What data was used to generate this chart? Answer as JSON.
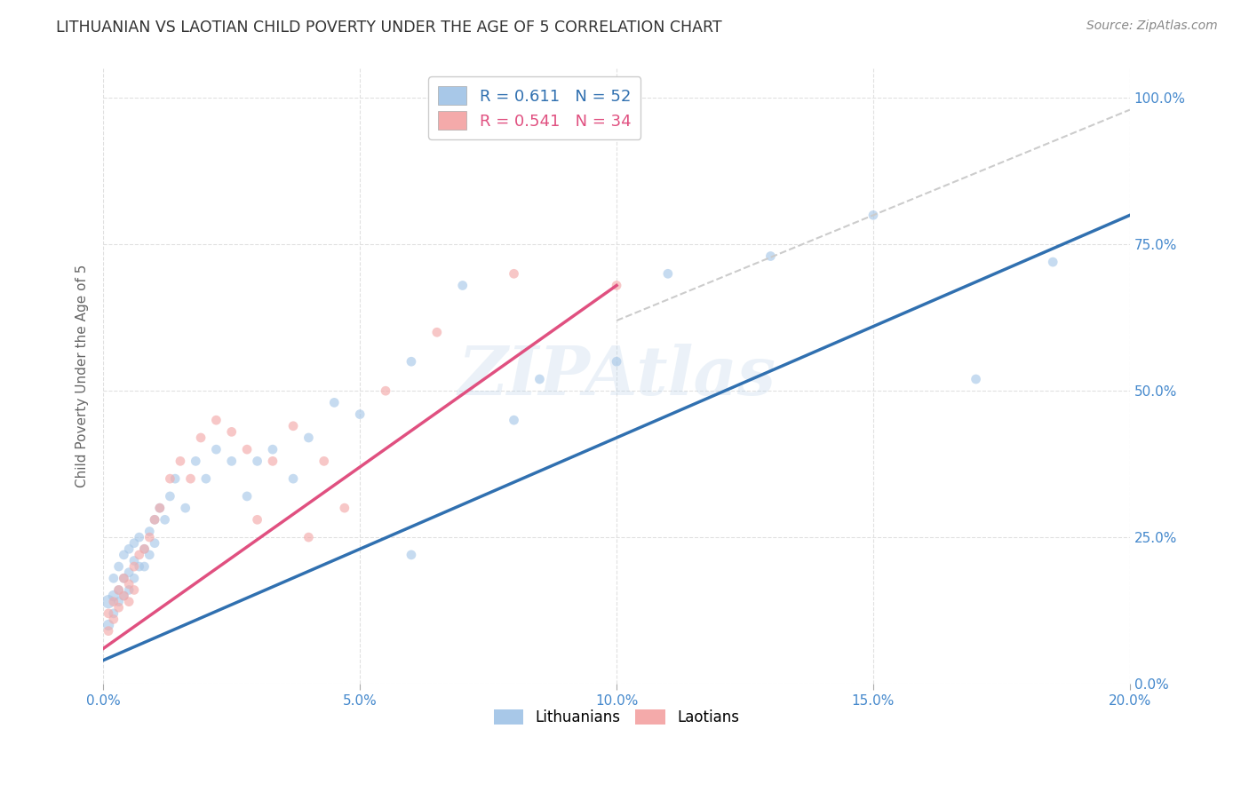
{
  "title": "LITHUANIAN VS LAOTIAN CHILD POVERTY UNDER THE AGE OF 5 CORRELATION CHART",
  "source": "Source: ZipAtlas.com",
  "ylabel": "Child Poverty Under the Age of 5",
  "watermark": "ZIPAtlas",
  "legend_blue_R": "R = 0.611",
  "legend_blue_N": "N = 52",
  "legend_pink_R": "R = 0.541",
  "legend_pink_N": "N = 34",
  "blue_color": "#a8c8e8",
  "pink_color": "#f4aaaa",
  "blue_line_color": "#3070b0",
  "pink_line_color": "#e05080",
  "dashed_line_color": "#cccccc",
  "background_color": "#ffffff",
  "grid_color": "#e0e0e0",
  "tick_label_color": "#4488cc",
  "ylabel_color": "#666666",
  "title_color": "#333333",
  "source_color": "#888888",
  "blue_scatter_x": [
    0.001,
    0.001,
    0.002,
    0.002,
    0.002,
    0.003,
    0.003,
    0.003,
    0.004,
    0.004,
    0.004,
    0.005,
    0.005,
    0.005,
    0.006,
    0.006,
    0.006,
    0.007,
    0.007,
    0.008,
    0.008,
    0.009,
    0.009,
    0.01,
    0.01,
    0.011,
    0.012,
    0.013,
    0.014,
    0.016,
    0.018,
    0.02,
    0.022,
    0.025,
    0.028,
    0.03,
    0.033,
    0.037,
    0.04,
    0.045,
    0.05,
    0.06,
    0.07,
    0.085,
    0.1,
    0.11,
    0.13,
    0.15,
    0.17,
    0.185,
    0.06,
    0.08
  ],
  "blue_scatter_y": [
    0.14,
    0.1,
    0.15,
    0.12,
    0.18,
    0.14,
    0.16,
    0.2,
    0.15,
    0.18,
    0.22,
    0.16,
    0.19,
    0.23,
    0.18,
    0.21,
    0.24,
    0.2,
    0.25,
    0.2,
    0.23,
    0.22,
    0.26,
    0.24,
    0.28,
    0.3,
    0.28,
    0.32,
    0.35,
    0.3,
    0.38,
    0.35,
    0.4,
    0.38,
    0.32,
    0.38,
    0.4,
    0.35,
    0.42,
    0.48,
    0.46,
    0.55,
    0.68,
    0.52,
    0.55,
    0.7,
    0.73,
    0.8,
    0.52,
    0.72,
    0.22,
    0.45
  ],
  "blue_scatter_sizes": [
    120,
    80,
    80,
    60,
    60,
    60,
    60,
    60,
    60,
    60,
    60,
    60,
    60,
    60,
    60,
    60,
    60,
    60,
    60,
    60,
    60,
    60,
    60,
    60,
    60,
    60,
    60,
    60,
    60,
    60,
    60,
    60,
    60,
    60,
    60,
    60,
    60,
    60,
    60,
    60,
    60,
    60,
    60,
    60,
    60,
    60,
    60,
    60,
    60,
    60,
    60,
    60
  ],
  "pink_scatter_x": [
    0.001,
    0.001,
    0.002,
    0.002,
    0.003,
    0.003,
    0.004,
    0.004,
    0.005,
    0.005,
    0.006,
    0.006,
    0.007,
    0.008,
    0.009,
    0.01,
    0.011,
    0.013,
    0.015,
    0.017,
    0.019,
    0.022,
    0.025,
    0.028,
    0.03,
    0.033,
    0.037,
    0.04,
    0.043,
    0.047,
    0.055,
    0.065,
    0.08,
    0.1
  ],
  "pink_scatter_y": [
    0.12,
    0.09,
    0.14,
    0.11,
    0.13,
    0.16,
    0.15,
    0.18,
    0.14,
    0.17,
    0.16,
    0.2,
    0.22,
    0.23,
    0.25,
    0.28,
    0.3,
    0.35,
    0.38,
    0.35,
    0.42,
    0.45,
    0.43,
    0.4,
    0.28,
    0.38,
    0.44,
    0.25,
    0.38,
    0.3,
    0.5,
    0.6,
    0.7,
    0.68
  ],
  "pink_scatter_sizes": [
    60,
    60,
    60,
    60,
    60,
    60,
    60,
    60,
    60,
    60,
    60,
    60,
    60,
    60,
    60,
    60,
    60,
    60,
    60,
    60,
    60,
    60,
    60,
    60,
    60,
    60,
    60,
    60,
    60,
    60,
    60,
    60,
    60,
    60
  ],
  "xlim": [
    0.0,
    0.2
  ],
  "ylim": [
    0.0,
    1.05
  ],
  "xtick_vals": [
    0.0,
    0.05,
    0.1,
    0.15,
    0.2
  ],
  "xtick_labels": [
    "0.0%",
    "5.0%",
    "10.0%",
    "15.0%",
    "20.0%"
  ],
  "ytick_vals": [
    0.0,
    0.25,
    0.5,
    0.75,
    1.0
  ],
  "ytick_labels": [
    "0.0%",
    "25.0%",
    "50.0%",
    "75.0%",
    "100.0%"
  ],
  "blue_line_x": [
    0.0,
    0.2
  ],
  "blue_line_y": [
    0.04,
    0.8
  ],
  "pink_line_x": [
    0.0,
    0.1
  ],
  "pink_line_y": [
    0.06,
    0.68
  ],
  "dashed_line_x": [
    0.1,
    0.2
  ],
  "dashed_line_y": [
    0.62,
    0.98
  ]
}
